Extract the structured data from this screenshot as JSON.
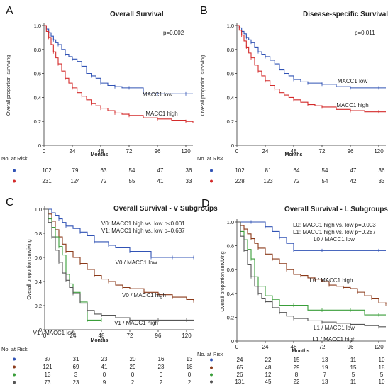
{
  "chart_data": [
    {
      "panel": "A",
      "type": "line",
      "title": "Overall Survival",
      "xlabel": "Months",
      "ylabel": "Overall proportion surviving",
      "xlim": [
        0,
        126
      ],
      "ylim": [
        0,
        1.0
      ],
      "xticks": [
        0,
        24,
        48,
        72,
        96,
        120
      ],
      "yticks": [
        0,
        0.2,
        0.4,
        0.6,
        0.8,
        1.0
      ],
      "annotations": [
        {
          "text": "p=0.002"
        }
      ],
      "series": [
        {
          "name": "MACC1 low",
          "color": "#3153b5",
          "x": [
            0,
            2,
            4,
            6,
            8,
            10,
            12,
            15,
            18,
            21,
            24,
            28,
            32,
            36,
            40,
            44,
            48,
            54,
            60,
            66,
            72,
            84,
            96,
            108,
            120,
            126
          ],
          "y": [
            1.0,
            0.97,
            0.94,
            0.91,
            0.88,
            0.86,
            0.84,
            0.8,
            0.76,
            0.74,
            0.72,
            0.7,
            0.66,
            0.6,
            0.58,
            0.56,
            0.52,
            0.5,
            0.49,
            0.48,
            0.48,
            0.43,
            0.43,
            0.43,
            0.43,
            0.43
          ]
        },
        {
          "name": "MACC1 high",
          "color": "#d42b2b",
          "x": [
            0,
            2,
            4,
            6,
            8,
            10,
            12,
            15,
            18,
            21,
            24,
            28,
            32,
            36,
            40,
            44,
            48,
            54,
            60,
            66,
            72,
            84,
            96,
            108,
            120,
            126
          ],
          "y": [
            1.0,
            0.95,
            0.9,
            0.84,
            0.78,
            0.73,
            0.68,
            0.62,
            0.56,
            0.52,
            0.48,
            0.44,
            0.41,
            0.38,
            0.35,
            0.33,
            0.31,
            0.29,
            0.27,
            0.26,
            0.25,
            0.23,
            0.22,
            0.21,
            0.2,
            0.19
          ]
        }
      ],
      "labels": [
        {
          "text": "MACC1 low",
          "series": 0
        },
        {
          "text": "MACC1 high",
          "series": 1
        }
      ],
      "risk_table": {
        "title": "No. at Risk",
        "rows": [
          {
            "color": "#3153b5",
            "values": [
              "102",
              "79",
              "63",
              "54",
              "47",
              "36"
            ]
          },
          {
            "color": "#d42b2b",
            "values": [
              "231",
              "124",
              "72",
              "55",
              "41",
              "33"
            ]
          }
        ]
      }
    },
    {
      "panel": "B",
      "type": "line",
      "title": "Disease-specific Survival",
      "xlabel": "Months",
      "ylabel": "Overall proportion surviving",
      "xlim": [
        0,
        126
      ],
      "ylim": [
        0,
        1.0
      ],
      "xticks": [
        0,
        24,
        48,
        72,
        96,
        120
      ],
      "yticks": [
        0,
        0.2,
        0.4,
        0.6,
        0.8,
        1.0
      ],
      "annotations": [
        {
          "text": "p=0.011"
        }
      ],
      "series": [
        {
          "name": "MACC1 low",
          "color": "#3153b5",
          "x": [
            0,
            2,
            4,
            6,
            8,
            10,
            12,
            15,
            18,
            21,
            24,
            28,
            32,
            36,
            40,
            44,
            48,
            54,
            60,
            66,
            72,
            84,
            96,
            108,
            120,
            126
          ],
          "y": [
            1.0,
            0.98,
            0.95,
            0.93,
            0.9,
            0.88,
            0.86,
            0.82,
            0.78,
            0.76,
            0.74,
            0.71,
            0.68,
            0.63,
            0.6,
            0.58,
            0.55,
            0.53,
            0.52,
            0.52,
            0.51,
            0.49,
            0.48,
            0.48,
            0.48,
            0.48
          ]
        },
        {
          "name": "MACC1 high",
          "color": "#d42b2b",
          "x": [
            0,
            2,
            4,
            6,
            8,
            10,
            12,
            15,
            18,
            21,
            24,
            28,
            32,
            36,
            40,
            44,
            48,
            54,
            60,
            66,
            72,
            84,
            96,
            108,
            120,
            126
          ],
          "y": [
            1.0,
            0.96,
            0.92,
            0.87,
            0.82,
            0.77,
            0.73,
            0.67,
            0.62,
            0.58,
            0.54,
            0.5,
            0.47,
            0.44,
            0.42,
            0.4,
            0.38,
            0.36,
            0.34,
            0.33,
            0.32,
            0.3,
            0.29,
            0.28,
            0.28,
            0.28
          ]
        }
      ],
      "labels": [
        {
          "text": "MACC1 low",
          "series": 0
        },
        {
          "text": "MACC1 high",
          "series": 1
        }
      ],
      "risk_table": {
        "title": "No. at Risk",
        "rows": [
          {
            "color": "#3153b5",
            "values": [
              "102",
              "81",
              "64",
              "54",
              "47",
              "36"
            ]
          },
          {
            "color": "#d42b2b",
            "values": [
              "228",
              "123",
              "72",
              "54",
              "42",
              "33"
            ]
          }
        ]
      }
    },
    {
      "panel": "C",
      "type": "line",
      "title": "Overall Survival - V Subgroups",
      "xlabel": "Months",
      "ylabel": "Overall proportion surviving",
      "xlim": [
        0,
        126
      ],
      "ylim": [
        0,
        1.0
      ],
      "xticks": [
        0,
        24,
        48,
        72,
        96,
        120
      ],
      "yticks": [
        0,
        0.2,
        0.4,
        0.6,
        0.8,
        1.0
      ],
      "annotations": [
        {
          "text": "V0: MACC1 high vs. low p<0.001"
        },
        {
          "text": "V1: MACC1 high vs. low p=0.637"
        }
      ],
      "series": [
        {
          "name": "V0 / MACC1 low",
          "color": "#3153b5",
          "x": [
            0,
            3,
            6,
            9,
            12,
            15,
            18,
            24,
            30,
            36,
            42,
            48,
            54,
            60,
            72,
            84,
            90,
            96,
            108,
            120,
            126
          ],
          "y": [
            1.0,
            1.0,
            0.97,
            0.95,
            0.92,
            0.89,
            0.86,
            0.84,
            0.81,
            0.78,
            0.73,
            0.73,
            0.7,
            0.68,
            0.65,
            0.65,
            0.6,
            0.6,
            0.6,
            0.6,
            0.6
          ]
        },
        {
          "name": "V0 / MACC1 high",
          "color": "#8b3a1a",
          "x": [
            0,
            3,
            6,
            9,
            12,
            15,
            18,
            24,
            30,
            36,
            42,
            48,
            54,
            60,
            66,
            72,
            84,
            96,
            108,
            120,
            126
          ],
          "y": [
            1.0,
            0.96,
            0.9,
            0.83,
            0.77,
            0.71,
            0.65,
            0.6,
            0.55,
            0.5,
            0.45,
            0.42,
            0.4,
            0.37,
            0.35,
            0.34,
            0.31,
            0.29,
            0.27,
            0.25,
            0.24
          ]
        },
        {
          "name": "V1 / MACC1 low",
          "color": "#3a9e3a",
          "x": [
            0,
            3,
            6,
            9,
            12,
            15,
            18,
            21,
            24,
            30,
            36,
            42,
            48
          ],
          "y": [
            1.0,
            0.92,
            0.85,
            0.77,
            0.69,
            0.62,
            0.46,
            0.38,
            0.31,
            0.23,
            0.08,
            0.08,
            0.08
          ]
        },
        {
          "name": "V1 / MACC1 high",
          "color": "#555555",
          "x": [
            0,
            3,
            6,
            9,
            12,
            15,
            18,
            21,
            24,
            30,
            36,
            42,
            48,
            60,
            72,
            84,
            96,
            108,
            120,
            126
          ],
          "y": [
            1.0,
            0.89,
            0.77,
            0.66,
            0.56,
            0.47,
            0.41,
            0.35,
            0.3,
            0.22,
            0.16,
            0.13,
            0.12,
            0.1,
            0.08,
            0.08,
            0.08,
            0.08,
            0.08,
            0.08
          ]
        }
      ],
      "labels": [
        {
          "text": "V0 / MACC1 low",
          "series": 0
        },
        {
          "text": "V0 / MACC1 high",
          "series": 1
        },
        {
          "text": "V1 / MACC1 high",
          "series": 3
        },
        {
          "text": "V1 / MACC1 low",
          "series": 2
        }
      ],
      "risk_table": {
        "title": "No. at Risk",
        "rows": [
          {
            "color": "#3153b5",
            "values": [
              "37",
              "31",
              "23",
              "20",
              "16",
              "13"
            ]
          },
          {
            "color": "#8b3a1a",
            "values": [
              "121",
              "69",
              "41",
              "29",
              "23",
              "18"
            ]
          },
          {
            "color": "#3a9e3a",
            "values": [
              "13",
              "3",
              "0",
              "0",
              "0",
              "0"
            ]
          },
          {
            "color": "#555555",
            "values": [
              "73",
              "23",
              "9",
              "2",
              "2",
              "2"
            ]
          }
        ]
      }
    },
    {
      "panel": "D",
      "type": "line",
      "title": "Overall Survival - L Subgroups",
      "xlabel": "Months",
      "ylabel": "Overall proportion surviving",
      "xlim": [
        0,
        126
      ],
      "ylim": [
        0,
        1.0
      ],
      "xticks": [
        0,
        24,
        48,
        72,
        96,
        120
      ],
      "yticks": [
        0,
        0.2,
        0.4,
        0.6,
        0.8,
        1.0
      ],
      "annotations": [
        {
          "text": "L0: MACC1 high vs. low p=0.003"
        },
        {
          "text": "L1: MACC1 high vs. low p=0.287"
        }
      ],
      "series": [
        {
          "name": "L0 / MACC1 low",
          "color": "#3153b5",
          "x": [
            0,
            6,
            12,
            18,
            24,
            30,
            36,
            42,
            48,
            60,
            72,
            96,
            120,
            126
          ],
          "y": [
            1.0,
            1.0,
            1.0,
            1.0,
            0.96,
            0.92,
            0.87,
            0.82,
            0.76,
            0.76,
            0.76,
            0.76,
            0.76,
            0.76
          ]
        },
        {
          "name": "L0 / MACC1 high",
          "color": "#8b3a1a",
          "x": [
            0,
            3,
            6,
            9,
            12,
            15,
            18,
            24,
            30,
            36,
            42,
            48,
            54,
            60,
            66,
            72,
            78,
            84,
            90,
            96,
            102,
            108,
            114,
            120,
            126
          ],
          "y": [
            1.0,
            0.97,
            0.94,
            0.9,
            0.86,
            0.82,
            0.78,
            0.73,
            0.69,
            0.65,
            0.6,
            0.56,
            0.55,
            0.53,
            0.52,
            0.5,
            0.47,
            0.46,
            0.45,
            0.44,
            0.41,
            0.38,
            0.36,
            0.32,
            0.31
          ]
        },
        {
          "name": "L1 / MACC1 low",
          "color": "#3a9e3a",
          "x": [
            0,
            3,
            6,
            9,
            12,
            15,
            18,
            24,
            30,
            36,
            48,
            60,
            72,
            84,
            96,
            108,
            120,
            126
          ],
          "y": [
            1.0,
            0.92,
            0.85,
            0.77,
            0.69,
            0.54,
            0.46,
            0.38,
            0.35,
            0.3,
            0.3,
            0.26,
            0.26,
            0.26,
            0.26,
            0.22,
            0.22,
            0.22
          ]
        },
        {
          "name": "L1 / MACC1 high",
          "color": "#555555",
          "x": [
            0,
            3,
            6,
            9,
            12,
            15,
            18,
            21,
            24,
            30,
            36,
            42,
            48,
            60,
            72,
            84,
            96,
            108,
            120,
            126
          ],
          "y": [
            1.0,
            0.88,
            0.76,
            0.64,
            0.54,
            0.46,
            0.4,
            0.36,
            0.33,
            0.28,
            0.24,
            0.21,
            0.19,
            0.17,
            0.16,
            0.15,
            0.14,
            0.13,
            0.12,
            0.12
          ]
        }
      ],
      "labels": [
        {
          "text": "L0 / MACC1 low",
          "series": 0
        },
        {
          "text": "L0 / MACC1 high",
          "series": 1
        },
        {
          "text": "L1 / MACC1 low",
          "series": 2
        },
        {
          "text": "L1 / MACC1 high",
          "series": 3
        }
      ],
      "risk_table": {
        "title": "No. at Risk",
        "rows": [
          {
            "color": "#3153b5",
            "values": [
              "24",
              "22",
              "15",
              "13",
              "11",
              "10"
            ]
          },
          {
            "color": "#8b3a1a",
            "values": [
              "65",
              "48",
              "29",
              "19",
              "15",
              "18"
            ]
          },
          {
            "color": "#3a9e3a",
            "values": [
              "26",
              "12",
              "8",
              "7",
              "5",
              "5"
            ]
          },
          {
            "color": "#555555",
            "values": [
              "131",
              "45",
              "22",
              "13",
              "11",
              "10"
            ]
          }
        ]
      }
    }
  ]
}
